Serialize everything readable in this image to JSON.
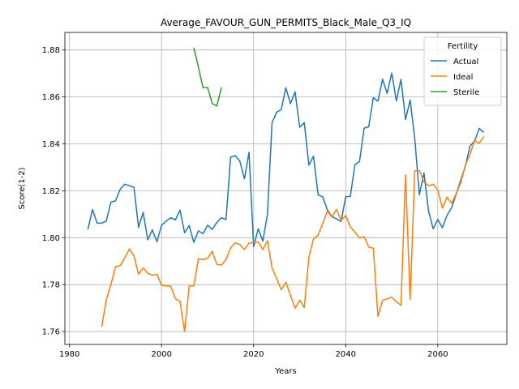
{
  "chart_data": {
    "type": "line",
    "title": "Average_FAVOUR_GUN_PERMITS_Black_Male_Q3_IQ",
    "xlabel": "Years",
    "ylabel": "Score(1-2)",
    "xlim": [
      1979,
      2075
    ],
    "ylim": [
      1.7545,
      1.8875
    ],
    "x_ticks": [
      1980,
      2000,
      2020,
      2040,
      2060
    ],
    "y_ticks": [
      1.76,
      1.78,
      1.8,
      1.82,
      1.84,
      1.86,
      1.88
    ],
    "y_tick_labels": [
      "1.76",
      "1.78",
      "1.80",
      "1.82",
      "1.84",
      "1.86",
      "1.88"
    ],
    "grid": true,
    "legend": {
      "title": "Fertility",
      "position": "top-right"
    },
    "series": [
      {
        "name": "Actual",
        "color": "#1f77b4",
        "x": [
          1984,
          1985,
          1986,
          1987,
          1988,
          1989,
          1990,
          1991,
          1992,
          1993,
          1994,
          1995,
          1996,
          1997,
          1998,
          1999,
          2000,
          2001,
          2002,
          2003,
          2004,
          2005,
          2006,
          2007,
          2008,
          2009,
          2010,
          2011,
          2012,
          2013,
          2014,
          2015,
          2016,
          2017,
          2018,
          2019,
          2020,
          2021,
          2022,
          2023,
          2024,
          2025,
          2026,
          2027,
          2028,
          2029,
          2030,
          2031,
          2032,
          2033,
          2034,
          2035,
          2036,
          2037,
          2038,
          2039,
          2040,
          2041,
          2042,
          2043,
          2044,
          2045,
          2046,
          2047,
          2048,
          2049,
          2050,
          2051,
          2052,
          2053,
          2054,
          2055,
          2056,
          2057,
          2058,
          2059,
          2060,
          2061,
          2062,
          2063,
          2064,
          2065,
          2066,
          2067,
          2068,
          2069,
          2070
        ],
        "y": [
          1.8036,
          1.812,
          1.8062,
          1.8062,
          1.8071,
          1.8152,
          1.8157,
          1.8206,
          1.8228,
          1.8222,
          1.8215,
          1.8044,
          1.8108,
          1.7991,
          1.8033,
          1.7983,
          1.8053,
          1.8071,
          1.8085,
          1.8076,
          1.8118,
          1.8021,
          1.8052,
          1.798,
          1.8029,
          1.8017,
          1.8053,
          1.8035,
          1.8065,
          1.8085,
          1.8077,
          1.8343,
          1.835,
          1.8326,
          1.8251,
          1.8364,
          1.7962,
          1.8038,
          1.7985,
          1.81,
          1.849,
          1.8535,
          1.8546,
          1.8639,
          1.8571,
          1.8622,
          1.8471,
          1.849,
          1.8309,
          1.8348,
          1.8183,
          1.8174,
          1.8119,
          1.809,
          1.808,
          1.8069,
          1.8175,
          1.8176,
          1.8311,
          1.8325,
          1.8467,
          1.8473,
          1.8597,
          1.8582,
          1.8676,
          1.8615,
          1.8702,
          1.8583,
          1.8675,
          1.8504,
          1.8587,
          1.8422,
          1.8183,
          1.8276,
          1.8113,
          1.8038,
          1.8077,
          1.8043,
          1.8095,
          1.8128,
          1.8186,
          1.8246,
          1.8306,
          1.839,
          1.8412,
          1.8466,
          1.8449
        ]
      },
      {
        "name": "Ideal",
        "color": "#ff7f0e",
        "x": [
          1987,
          1988,
          1989,
          1990,
          1991,
          1992,
          1993,
          1994,
          1995,
          1996,
          1997,
          1998,
          1999,
          2000,
          2001,
          2002,
          2003,
          2004,
          2005,
          2006,
          2007,
          2008,
          2009,
          2010,
          2011,
          2012,
          2013,
          2014,
          2015,
          2016,
          2017,
          2018,
          2019,
          2020,
          2021,
          2022,
          2023,
          2024,
          2025,
          2026,
          2027,
          2028,
          2029,
          2030,
          2031,
          2032,
          2033,
          2034,
          2035,
          2036,
          2037,
          2038,
          2039,
          2040,
          2041,
          2042,
          2043,
          2044,
          2045,
          2046,
          2047,
          2048,
          2049,
          2050,
          2051,
          2052,
          2053,
          2054,
          2055,
          2056,
          2057,
          2058,
          2059,
          2060,
          2061,
          2062,
          2063,
          2064,
          2065,
          2066,
          2067,
          2068,
          2069,
          2070
        ],
        "y": [
          1.762,
          1.7736,
          1.7801,
          1.7877,
          1.788,
          1.7914,
          1.7952,
          1.7923,
          1.7844,
          1.7871,
          1.7848,
          1.784,
          1.7844,
          1.7797,
          1.7794,
          1.7793,
          1.774,
          1.7729,
          1.76,
          1.7794,
          1.7794,
          1.791,
          1.7906,
          1.7913,
          1.7942,
          1.7886,
          1.7883,
          1.7907,
          1.7956,
          1.7978,
          1.7971,
          1.795,
          1.7977,
          1.798,
          1.7982,
          1.7949,
          1.7987,
          1.7871,
          1.7826,
          1.7778,
          1.781,
          1.7754,
          1.7699,
          1.7734,
          1.7702,
          1.7917,
          1.7995,
          1.8011,
          1.8059,
          1.8113,
          1.8088,
          1.8121,
          1.8074,
          1.8094,
          1.8047,
          1.8023,
          1.7999,
          1.8004,
          1.796,
          1.7955,
          1.7665,
          1.7733,
          1.7739,
          1.7747,
          1.7727,
          1.7712,
          1.8267,
          1.7735,
          1.8285,
          1.8286,
          1.8237,
          1.8222,
          1.8228,
          1.8203,
          1.8126,
          1.8173,
          1.8147,
          1.8188,
          1.8235,
          1.8309,
          1.8356,
          1.8414,
          1.8403,
          1.8431
        ]
      },
      {
        "name": "Sterile",
        "color": "#2ca02c",
        "x": [
          2007,
          2008,
          2009,
          2010,
          2011,
          2012,
          2013
        ],
        "y": [
          1.881,
          1.8727,
          1.864,
          1.864,
          1.8572,
          1.8561,
          1.8641
        ]
      }
    ]
  }
}
